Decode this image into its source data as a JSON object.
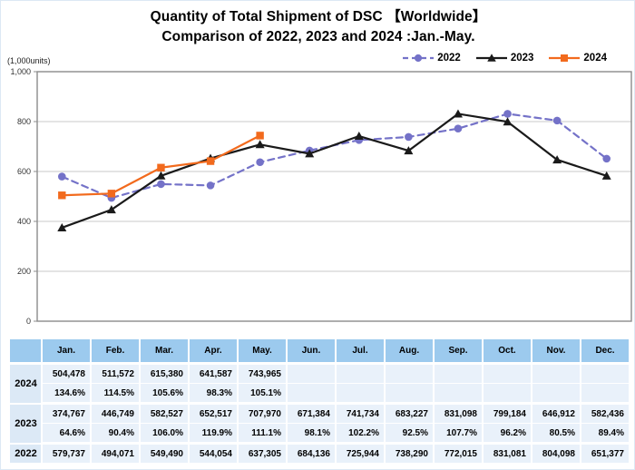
{
  "title": {
    "line1": "Quantity of Total Shipment of DSC 【Worldwide】",
    "line2": "Comparison of 2022, 2023 and 2024 :Jan.-May."
  },
  "y_axis_unit": "(1,000units)",
  "chart_data": {
    "type": "line",
    "categories": [
      "Jan.",
      "Feb.",
      "Mar.",
      "Apr.",
      "May.",
      "Jun.",
      "Jul.",
      "Aug.",
      "Sep.",
      "Oct.",
      "Nov.",
      "Dec."
    ],
    "title": "Quantity of Total Shipment of DSC 【Worldwide】 Comparison of 2022, 2023 and 2024 :Jan.-May.",
    "xlabel": "",
    "ylabel": "(1,000units)",
    "ylim": [
      0,
      1000
    ],
    "yticks": [
      0,
      200,
      400,
      600,
      800,
      1000
    ],
    "ytick_labels": [
      "0",
      "200",
      "400",
      "600",
      "800",
      "1,000"
    ],
    "grid": true,
    "legend_position": "top-right",
    "series": [
      {
        "name": "2022",
        "color": "#7472c8",
        "line_style": "dashed",
        "marker": "circle",
        "values": [
          579.737,
          494.071,
          549.49,
          544.054,
          637.305,
          684.136,
          725.944,
          738.29,
          772.015,
          831.081,
          804.098,
          651.377
        ]
      },
      {
        "name": "2023",
        "color": "#1a1a1a",
        "line_style": "solid",
        "marker": "triangle",
        "values": [
          374.767,
          446.749,
          582.527,
          652.517,
          707.97,
          671.384,
          741.734,
          683.227,
          831.098,
          799.184,
          646.912,
          582.436
        ]
      },
      {
        "name": "2024",
        "color": "#f26a1d",
        "line_style": "solid",
        "marker": "square",
        "values": [
          504.478,
          511.572,
          615.38,
          641.587,
          743.965,
          null,
          null,
          null,
          null,
          null,
          null,
          null
        ]
      }
    ]
  },
  "table": {
    "months": [
      "Jan.",
      "Feb.",
      "Mar.",
      "Apr.",
      "May.",
      "Jun.",
      "Jul.",
      "Aug.",
      "Sep.",
      "Oct.",
      "Nov.",
      "Dec."
    ],
    "groups": [
      {
        "year": "2024",
        "values": [
          "504,478",
          "511,572",
          "615,380",
          "641,587",
          "743,965",
          "",
          "",
          "",
          "",
          "",
          "",
          ""
        ],
        "pct": [
          "134.6%",
          "114.5%",
          "105.6%",
          "98.3%",
          "105.1%",
          "",
          "",
          "",
          "",
          "",
          "",
          ""
        ]
      },
      {
        "year": "2023",
        "values": [
          "374,767",
          "446,749",
          "582,527",
          "652,517",
          "707,970",
          "671,384",
          "741,734",
          "683,227",
          "831,098",
          "799,184",
          "646,912",
          "582,436"
        ],
        "pct": [
          "64.6%",
          "90.4%",
          "106.0%",
          "119.9%",
          "111.1%",
          "98.1%",
          "102.2%",
          "92.5%",
          "107.7%",
          "96.2%",
          "80.5%",
          "89.4%"
        ]
      },
      {
        "year": "2022",
        "values": [
          "579,737",
          "494,071",
          "549,490",
          "544,054",
          "637,305",
          "684,136",
          "725,944",
          "738,290",
          "772,015",
          "831,081",
          "804,098",
          "651,377"
        ]
      }
    ]
  },
  "colors": {
    "grid_line": "#c9c9c9",
    "plot_border": "#8c8c8c",
    "table_header_bg": "#9ccaee",
    "table_cell_bg": "#e9f1fa",
    "table_year_bg": "#dce9f6"
  }
}
